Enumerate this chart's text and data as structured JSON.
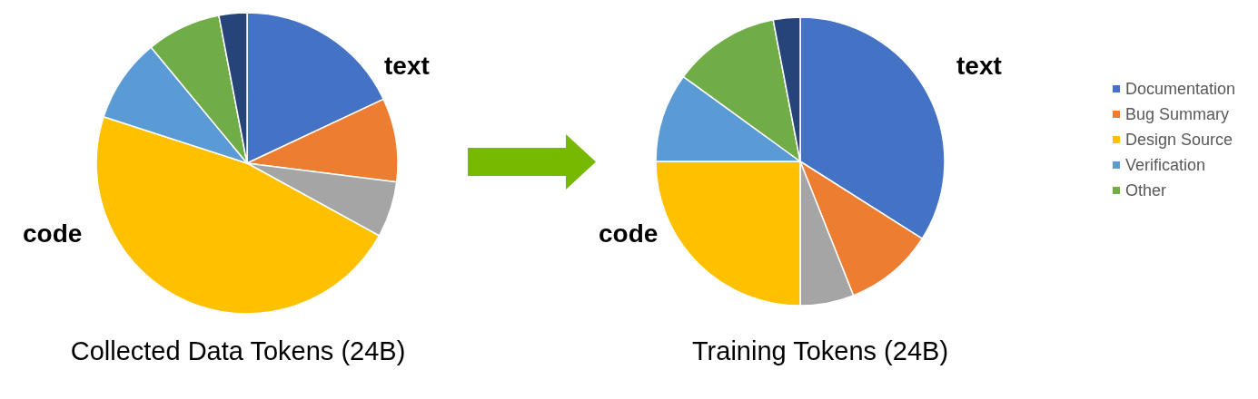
{
  "chart_data": {
    "type": "pie",
    "categories": [
      "Documentation",
      "Bug Summary",
      null,
      "Design Source",
      "Verification",
      "Other",
      null
    ],
    "colors": [
      "#4472c4",
      "#ed7d31",
      "#a5a5a5",
      "#ffc000",
      "#5b9bd5",
      "#70ad47",
      "#264478"
    ],
    "series": [
      {
        "name": "Collected Data Tokens (24B)",
        "values": [
          18,
          9,
          6,
          47,
          9,
          8,
          3
        ]
      },
      {
        "name": "Training Tokens (24B)",
        "values": [
          34,
          10,
          6,
          25,
          10,
          12,
          3
        ]
      }
    ],
    "annotations": [
      "text",
      "code",
      "text",
      "code"
    ],
    "legend": "right"
  }
}
